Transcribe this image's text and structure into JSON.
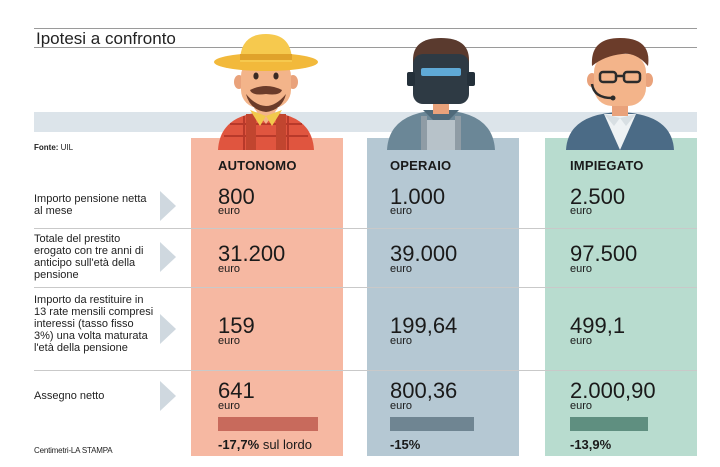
{
  "title": "Ipotesi a confronto",
  "source_label": "Fonte:",
  "source_value": "UIL",
  "credit": "Centimetri-LA STAMPA",
  "columns": [
    {
      "heading": "AUTONOMO",
      "color": "#f6b8a2",
      "bar_color": "#c86a5c",
      "icon": "farmer-with-hat-icon"
    },
    {
      "heading": "OPERAIO",
      "color": "#b5c8d3",
      "bar_color": "#6f8592",
      "icon": "welder-with-mask-icon"
    },
    {
      "heading": "IMPIEGATO",
      "color": "#b8dccf",
      "bar_color": "#5f8f80",
      "icon": "office-worker-with-headset-icon"
    }
  ],
  "rows": [
    {
      "label": "Importo pensione netta al mese",
      "values": [
        "800",
        "1.000",
        "2.500"
      ],
      "unit": "euro"
    },
    {
      "label": "Totale del prestito erogato con tre anni di anticipo sull'età della pensione",
      "values": [
        "31.200",
        "39.000",
        "97.500"
      ],
      "unit": "euro"
    },
    {
      "label": "Importo da restituire in 13 rate mensili compresi interessi (tasso fisso 3%) una volta maturata l'età della pensione",
      "values": [
        "159",
        "199,64",
        "499,1"
      ],
      "unit": "euro"
    },
    {
      "label": "Assegno netto",
      "values": [
        "641",
        "800,36",
        "2.000,90"
      ],
      "unit": "euro"
    }
  ],
  "changes": [
    {
      "value": "-17,7%",
      "suffix": " sul lordo"
    },
    {
      "value": "-15%",
      "suffix": ""
    },
    {
      "value": "-13,9%",
      "suffix": ""
    }
  ]
}
